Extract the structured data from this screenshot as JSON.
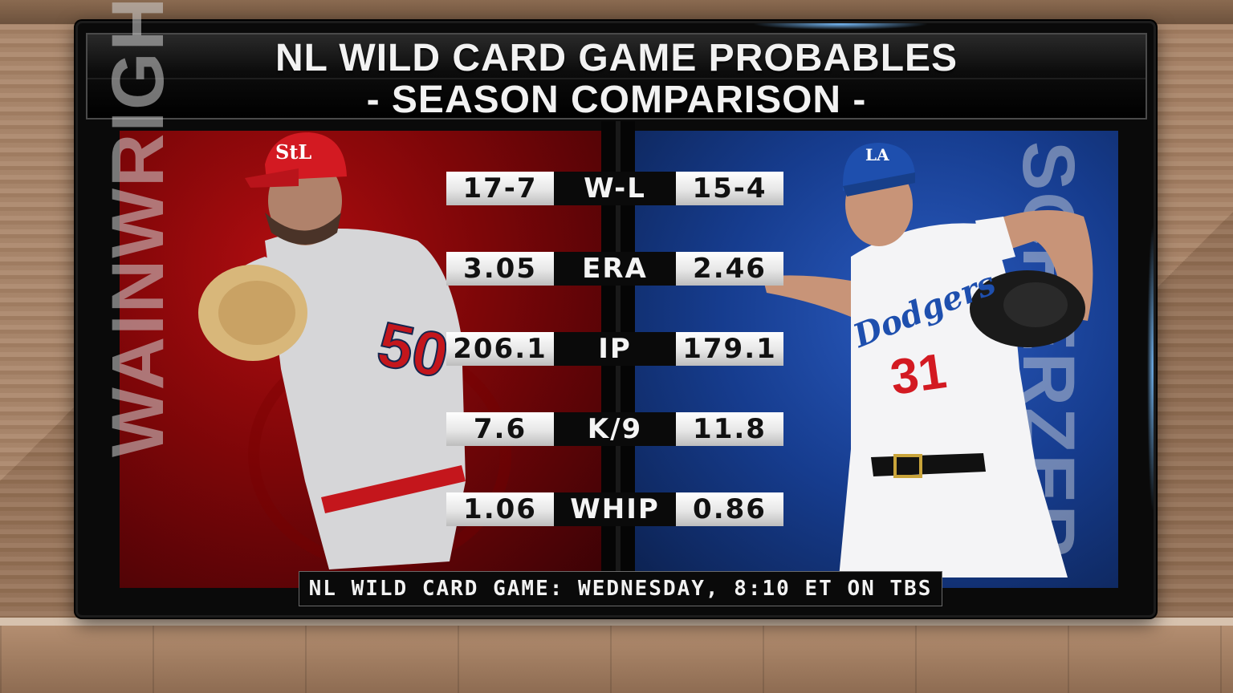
{
  "graphic": {
    "title": "NL WILD CARD GAME PROBABLES",
    "subtitle": "- SEASON COMPARISON -",
    "footer": "NL WILD CARD GAME: WEDNESDAY, 8:10 ET ON TBS"
  },
  "players": {
    "left": {
      "name": "WAINWRIGHT",
      "jersey_number": "50",
      "team_color": "#b00d10"
    },
    "right": {
      "name": "SCHERZER",
      "jersey_number": "31",
      "team_color": "#1e4fae"
    }
  },
  "stats": [
    {
      "label": "W-L",
      "left": "17-7",
      "right": "15-4"
    },
    {
      "label": "ERA",
      "left": "3.05",
      "right": "2.46"
    },
    {
      "label": "IP",
      "left": "206.1",
      "right": "179.1"
    },
    {
      "label": "K/9",
      "left": "7.6",
      "right": "11.8"
    },
    {
      "label": "WHIP",
      "left": "1.06",
      "right": "0.86"
    }
  ],
  "icons": [
    "cardinals-player-photo",
    "dodgers-player-photo",
    "cardinals-logo-watermark",
    "dodgers-logo-watermark"
  ]
}
